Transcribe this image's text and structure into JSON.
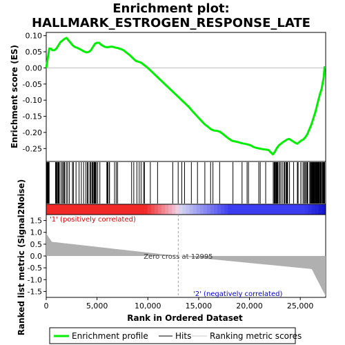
{
  "chart_data": {
    "type": "line",
    "title_line1": "Enrichment plot:",
    "title_line2": "HALLMARK_ESTROGEN_RESPONSE_LATE",
    "ylabel_top": "Enrichment score (ES)",
    "ylabel_bottom": "Ranked list metric (Signal2Noise)",
    "xlabel": "Rank in Ordered Dataset",
    "xlim": [
      0,
      27500
    ],
    "x_ticks": [
      0,
      5000,
      10000,
      15000,
      20000,
      25000
    ],
    "x_tick_labels": [
      "0",
      "5,000",
      "10,000",
      "15,000",
      "20,000",
      "25,000"
    ],
    "es_ylim": [
      -0.29,
      0.11
    ],
    "es_ticks": [
      0.1,
      0.05,
      0.0,
      -0.05,
      -0.1,
      -0.15,
      -0.2,
      -0.25
    ],
    "es_tick_labels": [
      "0.10",
      "0.05",
      "0.00",
      "-0.05",
      "-0.10",
      "-0.15",
      "-0.20",
      "-0.25"
    ],
    "metric_ylim": [
      -1.75,
      1.75
    ],
    "metric_ticks": [
      1.5,
      1.0,
      0.5,
      0.0,
      -0.5,
      -1.0,
      -1.5
    ],
    "metric_tick_labels": [
      "1.5",
      "1.0",
      "0.5",
      "0.0",
      "-0.5",
      "-1.0",
      "-1.5"
    ],
    "zero_cross_rank": 12995,
    "zero_cross_text": "Zero cross at 12995",
    "pos_label": "'1' (positively correlated)",
    "neg_label": "'2' (negatively correlated)",
    "series": [
      {
        "name": "Enrichment profile",
        "color": "#00ee00",
        "x": [
          0,
          150,
          300,
          450,
          600,
          800,
          1000,
          1200,
          1400,
          1600,
          1800,
          2000,
          2200,
          2400,
          2600,
          2800,
          3000,
          3200,
          3400,
          3600,
          3800,
          4000,
          4200,
          4400,
          4600,
          4800,
          5000,
          5200,
          5400,
          5600,
          5800,
          6000,
          6200,
          6400,
          6600,
          6800,
          7000,
          7200,
          7400,
          7600,
          7800,
          8000,
          8200,
          8400,
          8600,
          8800,
          9000,
          9200,
          9400,
          9600,
          9800,
          10000,
          10500,
          11000,
          11500,
          12000,
          12500,
          13000,
          13500,
          14000,
          14500,
          15000,
          15300,
          15600,
          15900,
          16200,
          16500,
          16800,
          17100,
          17400,
          17700,
          18000,
          18300,
          18600,
          18900,
          19200,
          19500,
          19800,
          20100,
          20400,
          20700,
          21000,
          21300,
          21600,
          21900,
          22100,
          22300,
          22500,
          22700,
          22900,
          23100,
          23300,
          23500,
          23700,
          23900,
          24100,
          24300,
          24500,
          24700,
          24900,
          25100,
          25300,
          25500,
          25700,
          25900,
          26100,
          26300,
          26500,
          26700,
          26900,
          27100,
          27300,
          27400
        ],
        "y": [
          0.0,
          0.03,
          0.06,
          0.06,
          0.055,
          0.055,
          0.06,
          0.07,
          0.08,
          0.085,
          0.09,
          0.093,
          0.085,
          0.078,
          0.07,
          0.065,
          0.063,
          0.06,
          0.057,
          0.053,
          0.05,
          0.048,
          0.05,
          0.055,
          0.065,
          0.075,
          0.078,
          0.078,
          0.072,
          0.068,
          0.065,
          0.064,
          0.065,
          0.066,
          0.065,
          0.063,
          0.062,
          0.06,
          0.058,
          0.055,
          0.05,
          0.045,
          0.04,
          0.034,
          0.028,
          0.022,
          0.02,
          0.018,
          0.015,
          0.01,
          0.005,
          0.0,
          -0.015,
          -0.03,
          -0.045,
          -0.06,
          -0.075,
          -0.09,
          -0.105,
          -0.12,
          -0.138,
          -0.155,
          -0.165,
          -0.175,
          -0.182,
          -0.19,
          -0.194,
          -0.195,
          -0.198,
          -0.205,
          -0.213,
          -0.22,
          -0.226,
          -0.228,
          -0.23,
          -0.233,
          -0.235,
          -0.237,
          -0.24,
          -0.245,
          -0.248,
          -0.25,
          -0.252,
          -0.253,
          -0.255,
          -0.262,
          -0.268,
          -0.26,
          -0.248,
          -0.24,
          -0.235,
          -0.23,
          -0.226,
          -0.222,
          -0.22,
          -0.224,
          -0.228,
          -0.232,
          -0.235,
          -0.23,
          -0.225,
          -0.222,
          -0.215,
          -0.205,
          -0.19,
          -0.175,
          -0.155,
          -0.135,
          -0.11,
          -0.085,
          -0.065,
          -0.03,
          0.005
        ]
      }
    ],
    "legend": [
      {
        "label": "Enrichment profile",
        "kind": "line",
        "color": "#00ee00"
      },
      {
        "label": "Hits",
        "kind": "line",
        "color": "#000000"
      },
      {
        "label": "Ranking metric scores",
        "kind": "line",
        "color": "#c8c8c8"
      }
    ],
    "grid": false
  }
}
